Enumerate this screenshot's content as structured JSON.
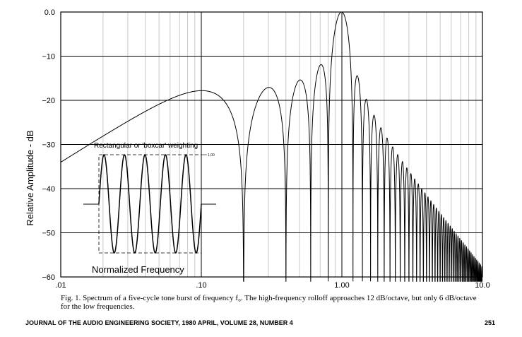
{
  "chart_data": {
    "type": "line",
    "title": "",
    "xlabel": "Normalized Frequency",
    "ylabel": "Relative Amplitude - dB",
    "xscale": "log",
    "xlim": [
      0.01,
      10.0
    ],
    "ylim": [
      -60,
      0
    ],
    "x_ticks": [
      {
        "value": 0.01,
        "label": ".01"
      },
      {
        "value": 0.1,
        "label": ".10"
      },
      {
        "value": 1.0,
        "label": "1.00"
      },
      {
        "value": 10.0,
        "label": "10.0"
      }
    ],
    "y_ticks": [
      {
        "value": 0,
        "label": "0.0"
      },
      {
        "value": -10,
        "label": "−10"
      },
      {
        "value": -20,
        "label": "−20"
      },
      {
        "value": -30,
        "label": "−30"
      },
      {
        "value": -40,
        "label": "−40"
      },
      {
        "value": -50,
        "label": "−50"
      },
      {
        "value": -60,
        "label": "−60"
      }
    ],
    "grid": true,
    "series": [
      {
        "description_formula": "spectrum of five-cycle rectangular tone burst",
        "cycles": 5,
        "color": "#000000"
      }
    ],
    "sample_points": [
      {
        "x": 0.01,
        "y": -34.5
      },
      {
        "x": 0.1,
        "y": -17.7
      },
      {
        "x": 0.2,
        "y": -61
      },
      {
        "x": 0.3,
        "y": -17.2
      },
      {
        "x": 1.0,
        "y": 0.0
      },
      {
        "x": 10.0,
        "y": -60
      }
    ],
    "inset": {
      "title": "Rectangular or 'boxcar' weighting",
      "scale_label": "1.00",
      "cycles": 5
    }
  },
  "caption": {
    "text": "Fig. 1. Spectrum of a five-cycle tone burst of frequency f₀. The high-frequency rolloff approaches 12 dB/octave, but only 6 dB/octave for the low frequencies."
  },
  "footer": {
    "journal": "JOURNAL OF THE AUDIO ENGINEERING SOCIETY, 1980 APRIL, VOLUME 28, NUMBER 4",
    "page": "251"
  }
}
